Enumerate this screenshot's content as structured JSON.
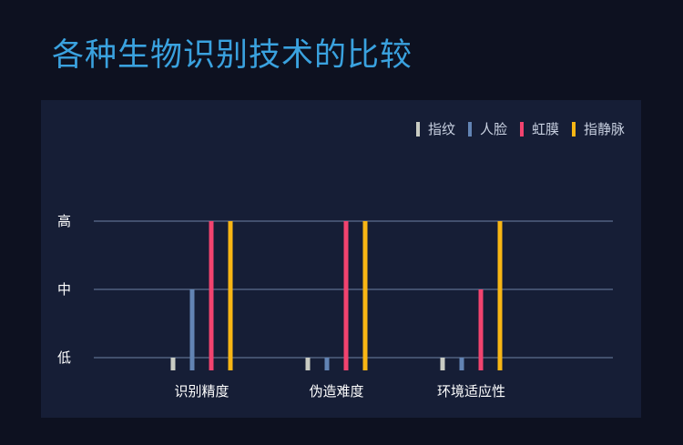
{
  "page": {
    "title": "各种生物识别技术的比较"
  },
  "chart_data": {
    "type": "bar",
    "title": "",
    "xlabel": "",
    "ylabel": "",
    "categories": [
      "识别精度",
      "伪造难度",
      "环境适应性"
    ],
    "y_ticks": [
      "低",
      "中",
      "高"
    ],
    "ylim": [
      0,
      3
    ],
    "grid": true,
    "legend_placement": "top-right",
    "series": [
      {
        "name": "指纹",
        "color": "#c9ccc3",
        "values": [
          1,
          1,
          1
        ]
      },
      {
        "name": "人脸",
        "color": "#6284b4",
        "values": [
          2,
          1,
          1
        ]
      },
      {
        "name": "虹膜",
        "color": "#f2436f",
        "values": [
          3,
          3,
          2
        ]
      },
      {
        "name": "指静脉",
        "color": "#f8b614",
        "values": [
          3,
          3,
          3
        ]
      }
    ]
  }
}
